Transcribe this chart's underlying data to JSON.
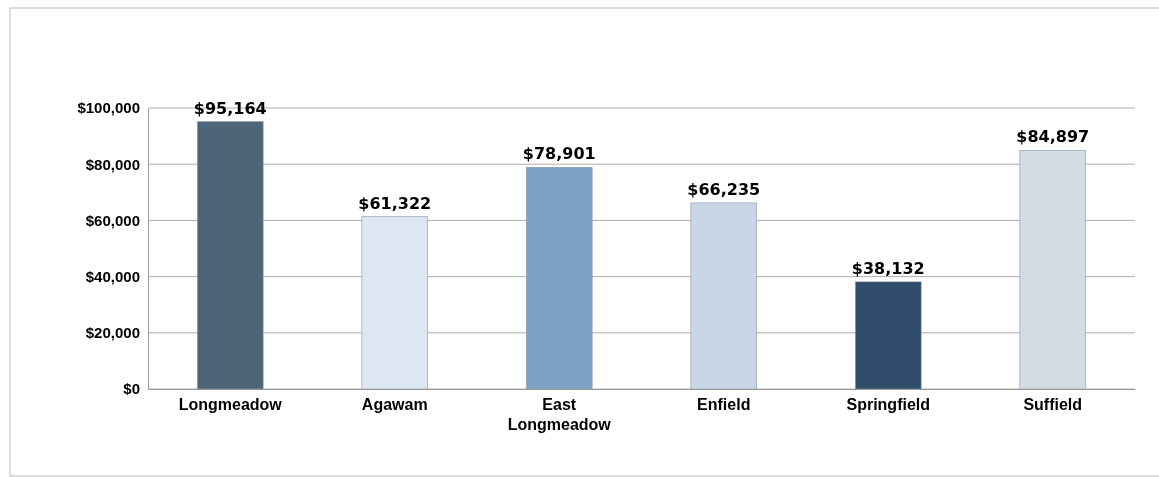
{
  "chart_data": {
    "type": "bar",
    "categories": [
      "Longmeadow",
      "Agawam",
      "East Longmeadow",
      "Enfield",
      "Springfield",
      "Suffield"
    ],
    "values": [
      95164,
      61322,
      78901,
      66235,
      38132,
      84897
    ],
    "colors": [
      "#4d6579",
      "#dde7f1",
      "#7ea2c3",
      "#c8d6e5",
      "#2f4d6b",
      "#d3dbe4"
    ],
    "value_labels": [
      "$95,164",
      "$61,322",
      "$78,901",
      "$66,235",
      "$38,132",
      "$84,897"
    ],
    "ylim": [
      0,
      100000
    ],
    "yticks": [
      {
        "value": 0,
        "label": "$0"
      },
      {
        "value": 20000,
        "label": "$20,000"
      },
      {
        "value": 40000,
        "label": "$40,000"
      },
      {
        "value": 60000,
        "label": "$60,000"
      },
      {
        "value": 80000,
        "label": "$80,000"
      },
      {
        "value": 100000,
        "label": "$100,000"
      }
    ],
    "grid": "y"
  }
}
